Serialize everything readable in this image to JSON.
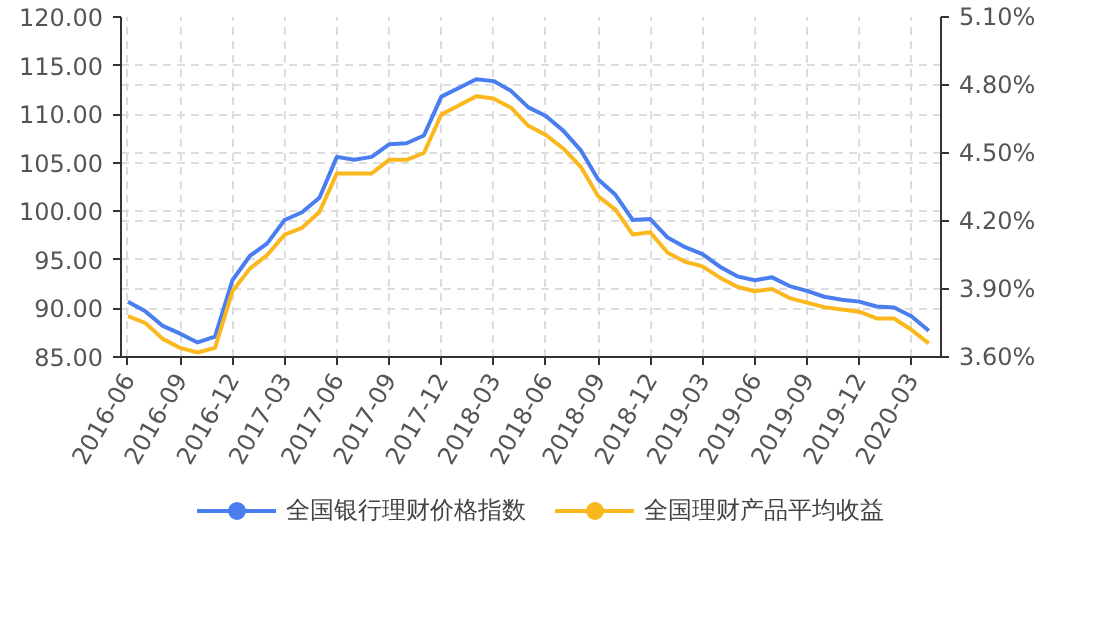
{
  "chart_data": {
    "type": "line",
    "categories": [
      "2016-06",
      null,
      null,
      "2016-09",
      null,
      null,
      "2016-12",
      null,
      null,
      "2017-03",
      null,
      null,
      "2017-06",
      null,
      null,
      "2017-09",
      null,
      null,
      "2017-12",
      null,
      null,
      "2018-03",
      null,
      null,
      "2018-06",
      null,
      null,
      "2018-09",
      null,
      null,
      "2018-12",
      null,
      null,
      "2019-03",
      null,
      null,
      "2019-06",
      null,
      null,
      "2019-09",
      null,
      null,
      "2019-12",
      null,
      null,
      "2020-03",
      null
    ],
    "series": [
      {
        "name": "全国银行理财价格指数",
        "color": "#4a7ef0",
        "values": [
          90.7,
          89.7,
          88.2,
          87.4,
          86.5,
          87.1,
          92.9,
          95.4,
          96.7,
          99.1,
          99.9,
          101.4,
          105.6,
          105.3,
          105.6,
          106.9,
          107.0,
          107.8,
          111.8,
          112.7,
          113.6,
          113.4,
          112.4,
          110.7,
          109.8,
          108.3,
          106.3,
          103.3,
          101.7,
          99.1,
          99.2,
          97.3,
          96.3,
          95.6,
          94.3,
          93.3,
          92.9,
          93.2,
          92.3,
          91.8,
          91.2,
          90.9,
          90.7,
          90.2,
          90.1,
          89.2,
          87.7
        ]
      },
      {
        "name": "全国理财产品平均收益",
        "color": "#fbb81e",
        "axis": "y2",
        "values": [
          3.78,
          3.75,
          3.68,
          3.64,
          3.62,
          3.64,
          3.89,
          3.99,
          4.05,
          4.14,
          4.17,
          4.24,
          4.41,
          4.41,
          4.41,
          4.47,
          4.47,
          4.5,
          4.67,
          4.71,
          4.75,
          4.74,
          4.7,
          4.62,
          4.58,
          4.52,
          4.44,
          4.31,
          4.25,
          4.14,
          4.15,
          4.06,
          4.02,
          4.0,
          3.95,
          3.91,
          3.89,
          3.9,
          3.86,
          3.84,
          3.82,
          3.81,
          3.8,
          3.77,
          3.77,
          3.72,
          3.66
        ]
      }
    ],
    "ylim": [
      85,
      120
    ],
    "yticks": [
      {
        "value": 85,
        "label": "85.00"
      },
      {
        "value": 90,
        "label": "90.00"
      },
      {
        "value": 95,
        "label": "95.00"
      },
      {
        "value": 100,
        "label": "100.00"
      },
      {
        "value": 105,
        "label": "105.00"
      },
      {
        "value": 110,
        "label": "110.00"
      },
      {
        "value": 115,
        "label": "115.00"
      },
      {
        "value": 120,
        "label": "120.00"
      }
    ],
    "y2lim": [
      3.6,
      5.1
    ],
    "y2ticks": [
      {
        "value": 3.6,
        "label": "3.60%"
      },
      {
        "value": 3.9,
        "label": "3.90%"
      },
      {
        "value": 4.2,
        "label": "4.20%"
      },
      {
        "value": 4.5,
        "label": "4.50%"
      },
      {
        "value": 4.8,
        "label": "4.80%"
      },
      {
        "value": 5.1,
        "label": "5.10%"
      }
    ],
    "grid": true,
    "legend": "bottom",
    "marker": "none",
    "line_style": "solid"
  }
}
